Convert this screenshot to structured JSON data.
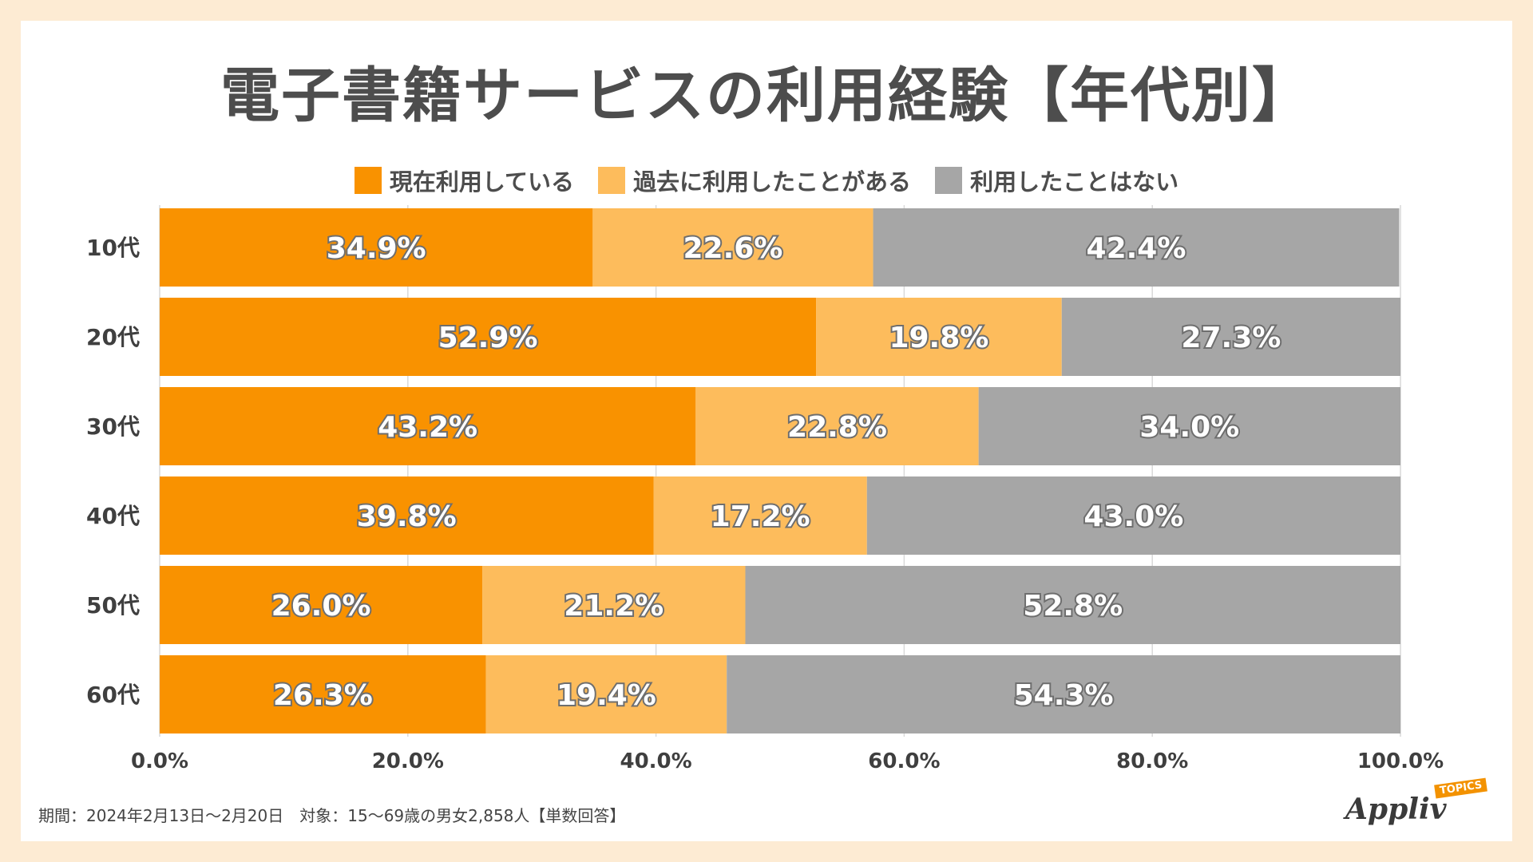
{
  "title": "電子書籍サービスの利用経験【年代別】",
  "footnote": "期間：2024年2月13日～2月20日　対象：15～69歳の男女2,858人【単数回答】",
  "logo": {
    "name": "Appliv",
    "badge": "TOPICS"
  },
  "colors": {
    "current": "#f99200",
    "past": "#fdbc5c",
    "never": "#a6a6a6"
  },
  "chart_data": {
    "type": "bar",
    "orientation": "horizontal",
    "stacked": true,
    "categories": [
      "10代",
      "20代",
      "30代",
      "40代",
      "50代",
      "60代"
    ],
    "series": [
      {
        "name": "現在利用している",
        "values": [
          34.9,
          52.9,
          43.2,
          39.8,
          26.0,
          26.3
        ],
        "color": "#f99200"
      },
      {
        "name": "過去に利用したことがある",
        "values": [
          22.6,
          19.8,
          22.8,
          17.2,
          21.2,
          19.4
        ],
        "color": "#fdbc5c"
      },
      {
        "name": "利用したことはない",
        "values": [
          42.4,
          27.3,
          34.0,
          43.0,
          52.8,
          54.3
        ],
        "color": "#a6a6a6"
      }
    ],
    "xlim": [
      0,
      100
    ],
    "xticks": [
      "0.0%",
      "20.0%",
      "40.0%",
      "60.0%",
      "80.0%",
      "100.0%"
    ],
    "legend_position": "top",
    "grid": true
  }
}
